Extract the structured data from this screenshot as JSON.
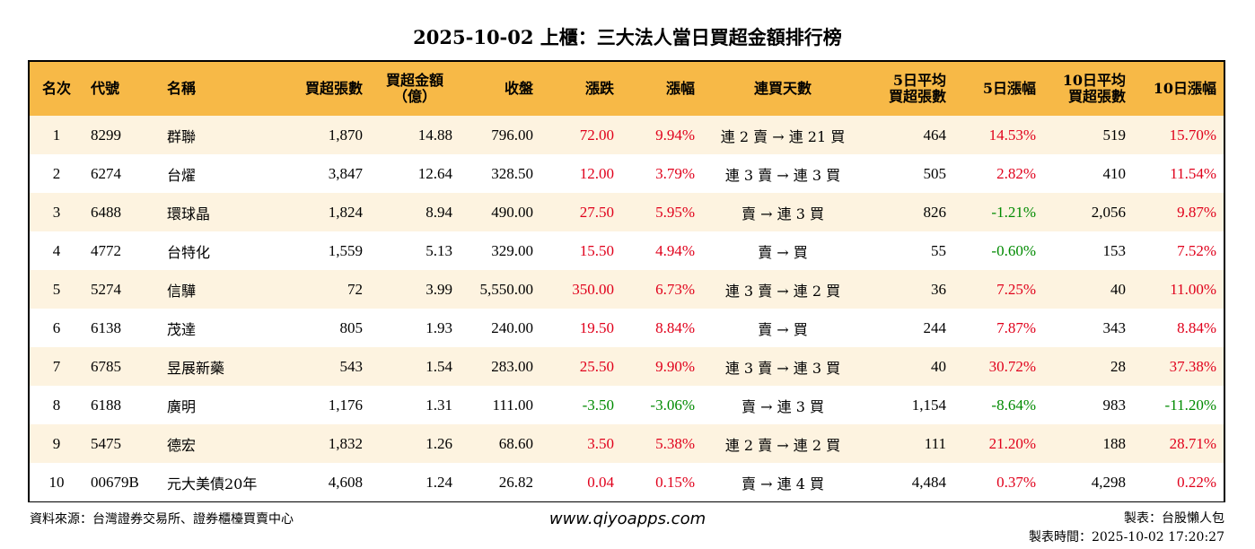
{
  "title": "2025-10-02 上櫃：三大法人當日買超金額排行榜",
  "table": {
    "headers": {
      "rank": "名次",
      "code": "代號",
      "name": "名稱",
      "net_lots": "買超張數",
      "net_amount_1": "買超金額",
      "net_amount_2": "（億）",
      "close": "收盤",
      "change": "漲跌",
      "pct": "漲幅",
      "streak": "連買天數",
      "avg5_1": "5日平均",
      "avg5_2": "買超張數",
      "pct5": "5日漲幅",
      "avg10_1": "10日平均",
      "avg10_2": "買超張數",
      "pct10": "10日漲幅"
    },
    "rows": [
      {
        "rank": "1",
        "code": "8299",
        "name": "群聯",
        "net_lots": "1,870",
        "net_amount": "14.88",
        "close": "796.00",
        "change": "72.00",
        "pct": "9.94%",
        "streak": "連 2 賣 → 連 21 買",
        "avg5": "464",
        "pct5": "14.53%",
        "avg10": "519",
        "pct10": "15.70%"
      },
      {
        "rank": "2",
        "code": "6274",
        "name": "台燿",
        "net_lots": "3,847",
        "net_amount": "12.64",
        "close": "328.50",
        "change": "12.00",
        "pct": "3.79%",
        "streak": "連 3 賣 → 連 3 買",
        "avg5": "505",
        "pct5": "2.82%",
        "avg10": "410",
        "pct10": "11.54%"
      },
      {
        "rank": "3",
        "code": "6488",
        "name": "環球晶",
        "net_lots": "1,824",
        "net_amount": "8.94",
        "close": "490.00",
        "change": "27.50",
        "pct": "5.95%",
        "streak": "賣 → 連 3 買",
        "avg5": "826",
        "pct5": "-1.21%",
        "avg10": "2,056",
        "pct10": "9.87%"
      },
      {
        "rank": "4",
        "code": "4772",
        "name": "台特化",
        "net_lots": "1,559",
        "net_amount": "5.13",
        "close": "329.00",
        "change": "15.50",
        "pct": "4.94%",
        "streak": "賣 → 買",
        "avg5": "55",
        "pct5": "-0.60%",
        "avg10": "153",
        "pct10": "7.52%"
      },
      {
        "rank": "5",
        "code": "5274",
        "name": "信驊",
        "net_lots": "72",
        "net_amount": "3.99",
        "close": "5,550.00",
        "change": "350.00",
        "pct": "6.73%",
        "streak": "連 3 賣 → 連 2 買",
        "avg5": "36",
        "pct5": "7.25%",
        "avg10": "40",
        "pct10": "11.00%"
      },
      {
        "rank": "6",
        "code": "6138",
        "name": "茂達",
        "net_lots": "805",
        "net_amount": "1.93",
        "close": "240.00",
        "change": "19.50",
        "pct": "8.84%",
        "streak": "賣 → 買",
        "avg5": "244",
        "pct5": "7.87%",
        "avg10": "343",
        "pct10": "8.84%"
      },
      {
        "rank": "7",
        "code": "6785",
        "name": "昱展新藥",
        "net_lots": "543",
        "net_amount": "1.54",
        "close": "283.00",
        "change": "25.50",
        "pct": "9.90%",
        "streak": "連 3 賣 → 連 3 買",
        "avg5": "40",
        "pct5": "30.72%",
        "avg10": "28",
        "pct10": "37.38%"
      },
      {
        "rank": "8",
        "code": "6188",
        "name": "廣明",
        "net_lots": "1,176",
        "net_amount": "1.31",
        "close": "111.00",
        "change": "-3.50",
        "pct": "-3.06%",
        "streak": "賣 → 連 3 買",
        "avg5": "1,154",
        "pct5": "-8.64%",
        "avg10": "983",
        "pct10": "-11.20%"
      },
      {
        "rank": "9",
        "code": "5475",
        "name": "德宏",
        "net_lots": "1,832",
        "net_amount": "1.26",
        "close": "68.60",
        "change": "3.50",
        "pct": "5.38%",
        "streak": "連 2 賣 → 連 2 買",
        "avg5": "111",
        "pct5": "21.20%",
        "avg10": "188",
        "pct10": "28.71%"
      },
      {
        "rank": "10",
        "code": "00679B",
        "name": "元大美債20年",
        "net_lots": "4,608",
        "net_amount": "1.24",
        "close": "26.82",
        "change": "0.04",
        "pct": "0.15%",
        "streak": "賣 → 連 4 買",
        "avg5": "4,484",
        "pct5": "0.37%",
        "avg10": "4,298",
        "pct10": "0.22%"
      }
    ]
  },
  "colors": {
    "header_bg": "#f7b947",
    "row_alt_bg": "#fdf3e0",
    "up": "#e0001b",
    "down": "#008a00"
  },
  "footer": {
    "source": "資料來源：台灣證券交易所、證券櫃檯買賣中心",
    "website": "www.qiyoapps.com",
    "maker": "製表：台股懶人包",
    "made_time": "製表時間：2025-10-02 17:20:27"
  }
}
